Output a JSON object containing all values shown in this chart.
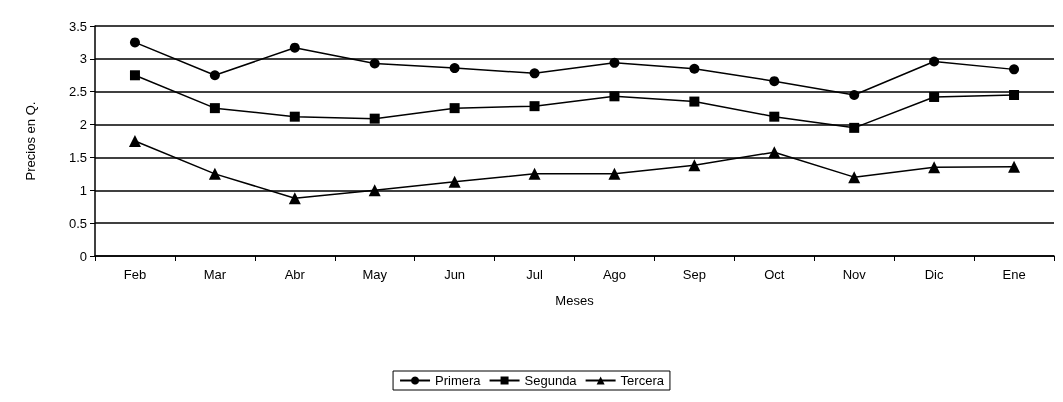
{
  "chart_data": {
    "type": "line",
    "xlabel": "Meses",
    "ylabel": "Precios en Q.",
    "categories": [
      "Feb",
      "Mar",
      "Abr",
      "May",
      "Jun",
      "Jul",
      "Ago",
      "Sep",
      "Oct",
      "Nov",
      "Dic",
      "Ene"
    ],
    "series": [
      {
        "name": "Primera",
        "color": "#000000",
        "marker": "circle",
        "values": [
          3.25,
          2.75,
          3.17,
          2.93,
          2.86,
          2.78,
          2.94,
          2.85,
          2.66,
          2.45,
          2.96,
          2.84
        ]
      },
      {
        "name": "Segunda",
        "color": "#000000",
        "marker": "square",
        "values": [
          2.75,
          2.25,
          2.12,
          2.09,
          2.25,
          2.28,
          2.43,
          2.35,
          2.12,
          1.95,
          2.42,
          2.45
        ]
      },
      {
        "name": "Tercera",
        "color": "#000000",
        "marker": "triangle",
        "values": [
          1.75,
          1.25,
          0.88,
          1.0,
          1.13,
          1.25,
          1.25,
          1.38,
          1.58,
          1.2,
          1.35,
          1.36
        ]
      }
    ],
    "ylim": [
      0,
      3.5
    ],
    "yticks": [
      0,
      0.5,
      1,
      1.5,
      2,
      2.5,
      3,
      3.5
    ],
    "grid": "y",
    "legend": "bottom",
    "line_style": "solid"
  }
}
